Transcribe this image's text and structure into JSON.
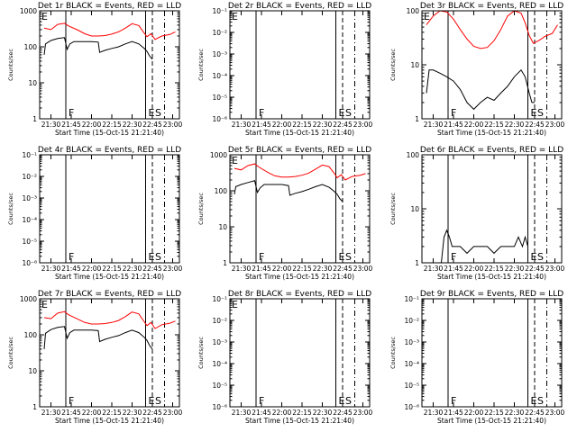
{
  "figure": {
    "xlabel": "Start Time (15-Oct-15 21:21:40)",
    "ylabel": "Counts/sec",
    "x_ticks": [
      "21:30",
      "21:45",
      "22:00",
      "22:15",
      "22:30",
      "22:45",
      "23:00"
    ],
    "colors": {
      "events": "#000000",
      "lld": "#ff0000",
      "axis": "#000000"
    }
  },
  "chart_data": [
    {
      "type": "line",
      "title": "Det 1r BLACK = Events, RED = LLD",
      "yscale": "log",
      "ylim": [
        1,
        1000
      ],
      "yticks": [
        "1",
        "10",
        "100",
        "1000"
      ],
      "xlim": [
        "21:21:40",
        "23:05"
      ],
      "vlines": [
        {
          "x": "21:41",
          "label": "F",
          "style": "solid"
        },
        {
          "x": "22:40",
          "label": "E",
          "style": "solid"
        },
        {
          "x": "22:45",
          "label": "S",
          "style": "dashed"
        },
        {
          "x": "22:54",
          "label": "",
          "style": "dashdot"
        }
      ],
      "corner_label": "E",
      "series": [
        {
          "name": "LLD",
          "color": "#ff0000",
          "x": [
            "21:25",
            "21:30",
            "21:35",
            "21:40",
            "21:43",
            "21:50",
            "21:55",
            "22:00",
            "22:05",
            "22:10",
            "22:15",
            "22:20",
            "22:25",
            "22:30",
            "22:35",
            "22:39",
            "22:41",
            "22:44",
            "22:47",
            "22:52",
            "22:58",
            "23:02"
          ],
          "y": [
            330,
            300,
            420,
            450,
            380,
            290,
            230,
            200,
            200,
            205,
            225,
            260,
            330,
            440,
            390,
            240,
            190,
            230,
            160,
            200,
            220,
            260
          ]
        },
        {
          "name": "Events",
          "color": "#000000",
          "x": [
            "21:25",
            "21:26",
            "21:30",
            "21:35",
            "21:40",
            "21:42",
            "21:44",
            "21:47",
            "21:50",
            "22:00",
            "22:05",
            "22:06",
            "22:10",
            "22:15",
            "22:20",
            "22:25",
            "22:30",
            "22:35",
            "22:39",
            "22:41",
            "22:43",
            "22:45"
          ],
          "y": [
            60,
            120,
            150,
            170,
            180,
            85,
            120,
            140,
            140,
            140,
            135,
            70,
            80,
            90,
            100,
            120,
            140,
            120,
            90,
            75,
            55,
            45
          ]
        }
      ]
    },
    {
      "type": "line",
      "title": "Det 2r BLACK = Events, RED = LLD",
      "yscale": "log",
      "ylim": [
        1e-06,
        0.1
      ],
      "yticks": [
        "10⁻⁶",
        "10⁻⁵",
        "10⁻⁴",
        "10⁻³",
        "10⁻²",
        "10⁻¹",
        "10⁰"
      ],
      "vlines": [
        {
          "x": "21:41",
          "label": "F",
          "style": "solid"
        },
        {
          "x": "22:40",
          "label": "E",
          "style": "solid"
        },
        {
          "x": "22:45",
          "label": "S",
          "style": "dashed"
        },
        {
          "x": "22:54",
          "label": "",
          "style": "dashdot"
        }
      ],
      "corner_label": "E",
      "series": []
    },
    {
      "type": "line",
      "title": "Det 3r BLACK = Events, RED = LLD",
      "yscale": "log",
      "ylim": [
        1,
        100
      ],
      "yticks": [
        "1",
        "10",
        "100"
      ],
      "vlines": [
        {
          "x": "21:41",
          "label": "F",
          "style": "solid"
        },
        {
          "x": "22:40",
          "label": "E",
          "style": "solid"
        },
        {
          "x": "22:45",
          "label": "S",
          "style": "dashed"
        },
        {
          "x": "22:54",
          "label": "",
          "style": "dashdot"
        }
      ],
      "corner_label": "E",
      "series": [
        {
          "name": "LLD",
          "color": "#ff0000",
          "x": [
            "21:25",
            "21:30",
            "21:35",
            "21:40",
            "21:45",
            "21:50",
            "21:55",
            "22:00",
            "22:05",
            "22:10",
            "22:15",
            "22:20",
            "22:25",
            "22:30",
            "22:35",
            "22:38",
            "22:41",
            "22:44",
            "22:48",
            "22:53",
            "22:58",
            "23:02"
          ],
          "y": [
            55,
            80,
            100,
            95,
            70,
            45,
            30,
            22,
            20,
            21,
            28,
            45,
            80,
            100,
            90,
            60,
            35,
            25,
            28,
            34,
            38,
            55
          ]
        },
        {
          "name": "Events",
          "color": "#000000",
          "x": [
            "21:25",
            "21:27",
            "21:30",
            "21:35",
            "21:40",
            "21:45",
            "21:50",
            "21:55",
            "22:00",
            "22:05",
            "22:10",
            "22:15",
            "22:20",
            "22:25",
            "22:30",
            "22:35",
            "22:38",
            "22:41",
            "22:43",
            "22:45"
          ],
          "y": [
            3,
            8,
            8,
            7,
            6,
            5,
            3.5,
            2,
            1.5,
            2,
            2.5,
            2.2,
            3,
            4,
            6,
            8,
            6,
            3,
            2,
            2
          ]
        }
      ]
    },
    {
      "type": "line",
      "title": "Det 4r BLACK = Events, RED = LLD",
      "yscale": "log",
      "ylim": [
        1e-06,
        0.1
      ],
      "yticks": [
        "10⁻⁶",
        "10⁻⁵",
        "10⁻⁴",
        "10⁻³",
        "10⁻²",
        "10⁻¹",
        "10⁰"
      ],
      "vlines": [
        {
          "x": "21:41",
          "label": "F",
          "style": "solid"
        },
        {
          "x": "22:40",
          "label": "E",
          "style": "solid"
        },
        {
          "x": "22:45",
          "label": "S",
          "style": "dashed"
        },
        {
          "x": "22:54",
          "label": "",
          "style": "dashdot"
        }
      ],
      "corner_label": "",
      "series": []
    },
    {
      "type": "line",
      "title": "Det 5r BLACK = Events, RED = LLD",
      "yscale": "log",
      "ylim": [
        1,
        1000
      ],
      "yticks": [
        "1",
        "10",
        "100",
        "1000"
      ],
      "vlines": [
        {
          "x": "21:41",
          "label": "F",
          "style": "solid"
        },
        {
          "x": "22:40",
          "label": "E",
          "style": "solid"
        },
        {
          "x": "22:45",
          "label": "S",
          "style": "dashed"
        },
        {
          "x": "22:54",
          "label": "",
          "style": "dashdot"
        }
      ],
      "corner_label": "E",
      "series": [
        {
          "name": "LLD",
          "color": "#ff0000",
          "x": [
            "21:25",
            "21:30",
            "21:35",
            "21:40",
            "21:43",
            "21:50",
            "21:55",
            "22:00",
            "22:05",
            "22:10",
            "22:15",
            "22:20",
            "22:25",
            "22:30",
            "22:35",
            "22:39",
            "22:41",
            "22:44",
            "22:47",
            "22:52",
            "22:58",
            "23:02"
          ],
          "y": [
            420,
            380,
            500,
            560,
            460,
            320,
            260,
            240,
            240,
            250,
            270,
            310,
            400,
            520,
            470,
            300,
            230,
            280,
            200,
            250,
            270,
            300
          ]
        },
        {
          "name": "Events",
          "color": "#000000",
          "x": [
            "21:25",
            "21:26",
            "21:30",
            "21:35",
            "21:40",
            "21:42",
            "21:44",
            "21:47",
            "21:50",
            "22:00",
            "22:05",
            "22:06",
            "22:10",
            "22:15",
            "22:20",
            "22:25",
            "22:30",
            "22:35",
            "22:39",
            "22:41",
            "22:43",
            "22:45"
          ],
          "y": [
            80,
            130,
            150,
            170,
            190,
            90,
            120,
            150,
            150,
            150,
            140,
            75,
            85,
            95,
            110,
            130,
            150,
            125,
            95,
            80,
            60,
            50
          ]
        }
      ]
    },
    {
      "type": "line",
      "title": "Det 6r BLACK = Events, RED = LLD",
      "yscale": "log",
      "ylim": [
        1,
        100
      ],
      "yticks": [
        "1",
        "10",
        "100"
      ],
      "vlines": [
        {
          "x": "21:41",
          "label": "F",
          "style": "solid"
        },
        {
          "x": "22:40",
          "label": "E",
          "style": "solid"
        },
        {
          "x": "22:45",
          "label": "S",
          "style": "dashed"
        },
        {
          "x": "22:54",
          "label": "",
          "style": "dashdot"
        }
      ],
      "corner_label": "",
      "series": [
        {
          "name": "Events",
          "color": "#000000",
          "x": [
            "21:36",
            "21:38",
            "21:40",
            "21:42",
            "21:44",
            "21:46",
            "21:50",
            "21:55",
            "22:00",
            "22:05",
            "22:10",
            "22:15",
            "22:20",
            "22:25",
            "22:30",
            "22:33",
            "22:36",
            "22:38",
            "22:40"
          ],
          "y": [
            1,
            3,
            4,
            3,
            2,
            2,
            2,
            1.5,
            2,
            2,
            2,
            1.5,
            2,
            2,
            2,
            3,
            2,
            3,
            2
          ]
        }
      ]
    },
    {
      "type": "line",
      "title": "Det 7r BLACK = Events, RED = LLD",
      "yscale": "log",
      "ylim": [
        1,
        1000
      ],
      "yticks": [
        "1",
        "10",
        "100",
        "1000"
      ],
      "vlines": [
        {
          "x": "21:41",
          "label": "F",
          "style": "solid"
        },
        {
          "x": "22:40",
          "label": "E",
          "style": "solid"
        },
        {
          "x": "22:45",
          "label": "S",
          "style": "dashed"
        },
        {
          "x": "22:54",
          "label": "",
          "style": "dashdot"
        }
      ],
      "corner_label": "E",
      "series": [
        {
          "name": "LLD",
          "color": "#ff0000",
          "x": [
            "21:25",
            "21:30",
            "21:35",
            "21:40",
            "21:43",
            "21:50",
            "21:55",
            "22:00",
            "22:05",
            "22:10",
            "22:15",
            "22:20",
            "22:25",
            "22:30",
            "22:35",
            "22:39",
            "22:41",
            "22:44",
            "22:47",
            "22:52",
            "22:58",
            "23:02"
          ],
          "y": [
            300,
            280,
            400,
            440,
            360,
            270,
            220,
            200,
            200,
            205,
            220,
            250,
            320,
            430,
            380,
            230,
            180,
            220,
            150,
            190,
            210,
            240
          ]
        },
        {
          "name": "Events",
          "color": "#000000",
          "x": [
            "21:25",
            "21:26",
            "21:30",
            "21:35",
            "21:40",
            "21:42",
            "21:44",
            "21:47",
            "21:50",
            "22:00",
            "22:05",
            "22:06",
            "22:10",
            "22:15",
            "22:20",
            "22:25",
            "22:30",
            "22:35",
            "22:39",
            "22:41",
            "22:43",
            "22:45"
          ],
          "y": [
            40,
            110,
            140,
            160,
            170,
            80,
            115,
            135,
            135,
            135,
            130,
            65,
            75,
            85,
            95,
            115,
            135,
            115,
            85,
            70,
            50,
            40
          ]
        }
      ]
    },
    {
      "type": "line",
      "title": "Det 8r BLACK = Events, RED = LLD",
      "yscale": "log",
      "ylim": [
        1e-06,
        0.1
      ],
      "yticks": [
        "10⁻⁶",
        "10⁻⁵",
        "10⁻⁴",
        "10⁻³",
        "10⁻²",
        "10⁻¹",
        "10⁰"
      ],
      "vlines": [
        {
          "x": "21:41",
          "label": "F",
          "style": "solid"
        },
        {
          "x": "22:40",
          "label": "E",
          "style": "solid"
        },
        {
          "x": "22:45",
          "label": "S",
          "style": "dashed"
        },
        {
          "x": "22:54",
          "label": "",
          "style": "dashdot"
        }
      ],
      "corner_label": "E",
      "series": []
    },
    {
      "type": "line",
      "title": "Det 9r BLACK = Events, RED = LLD",
      "yscale": "log",
      "ylim": [
        1e-06,
        0.1
      ],
      "yticks": [
        "10⁻⁶",
        "10⁻⁵",
        "10⁻⁴",
        "10⁻³",
        "10⁻²",
        "10⁻¹",
        "10⁰"
      ],
      "vlines": [
        {
          "x": "21:41",
          "label": "F",
          "style": "solid"
        },
        {
          "x": "22:40",
          "label": "E",
          "style": "solid"
        },
        {
          "x": "22:45",
          "label": "S",
          "style": "dashed"
        },
        {
          "x": "22:54",
          "label": "",
          "style": "dashdot"
        }
      ],
      "corner_label": "",
      "series": []
    }
  ]
}
